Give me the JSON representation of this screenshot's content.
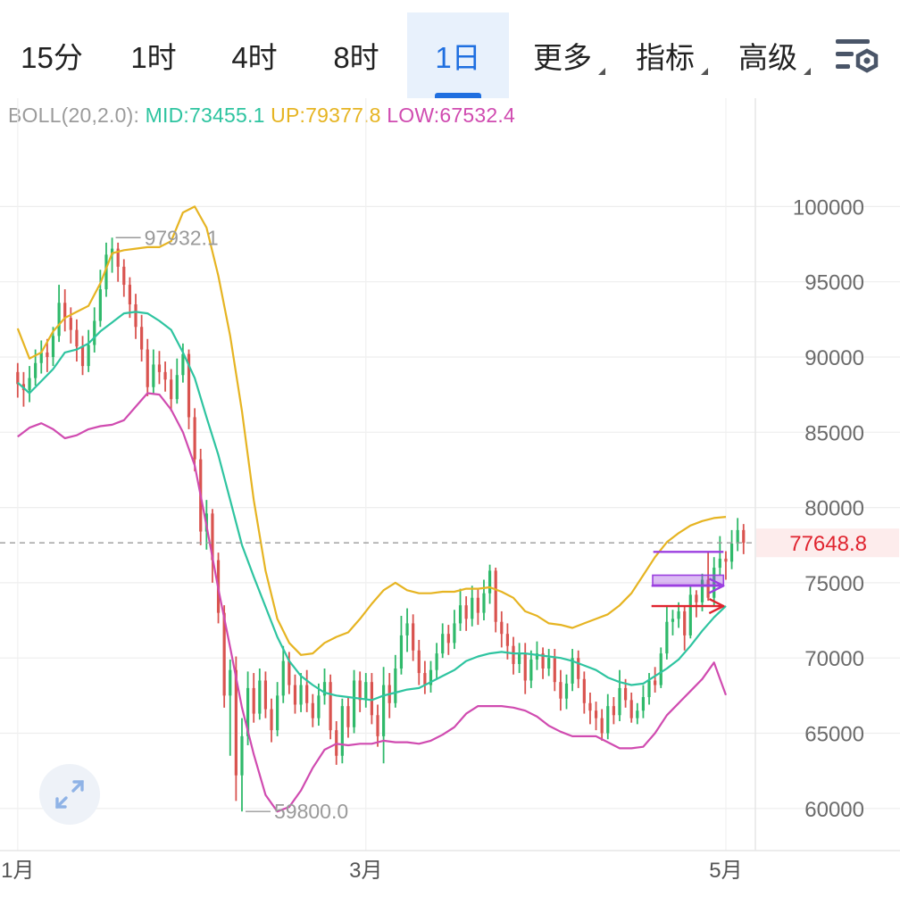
{
  "toolbar": {
    "tabs": [
      {
        "label": "15分",
        "active": false
      },
      {
        "label": "1时",
        "active": false
      },
      {
        "label": "4时",
        "active": false
      },
      {
        "label": "8时",
        "active": false
      },
      {
        "label": "1日",
        "active": true
      },
      {
        "label": "更多",
        "active": false
      },
      {
        "label": "指标",
        "active": false
      },
      {
        "label": "高级",
        "active": false
      }
    ],
    "settings_icon": "chart-settings-icon"
  },
  "indicator": {
    "label": "BOLL(20,2.0):",
    "mid": "MID:73455.1",
    "up": "UP:79377.8",
    "low": "LOW:67532.4"
  },
  "colors": {
    "accent": "#1f6fe0",
    "bull": "#2fb96a",
    "bear": "#d9534f",
    "mid_line": "#2ec4a0",
    "up_line": "#e6b422",
    "low_line": "#d04bb0",
    "drawing_purple": "#9b3fe0",
    "drawing_red": "#e0242f",
    "price_tag_bg": "#fdecec",
    "price_tag_text": "#e0242f"
  },
  "chart_data": {
    "type": "candlestick",
    "y_ticks": [
      "100000",
      "95000",
      "90000",
      "85000",
      "80000",
      "75000",
      "70000",
      "65000",
      "60000"
    ],
    "y_tick_values": [
      100000,
      95000,
      90000,
      85000,
      80000,
      75000,
      70000,
      65000,
      60000
    ],
    "ylim": [
      57200,
      107200
    ],
    "x_ticks": [
      {
        "label": "1月",
        "index": 0
      },
      {
        "label": "3月",
        "index": 59
      },
      {
        "label": "5月",
        "index": 120
      }
    ],
    "x_range": [
      -3,
      125
    ],
    "grid": true,
    "current_price": 77648.8,
    "current_price_label": "77648.8",
    "high_annotation": {
      "label": "97932.1",
      "index": 16,
      "value": 97932.1
    },
    "low_annotation": {
      "label": "59800.0",
      "index": 38,
      "value": 59800.0
    },
    "candles": [
      [
        89000,
        88200,
        89600,
        87300
      ],
      [
        88200,
        87800,
        89000,
        86700
      ],
      [
        87800,
        88600,
        89400,
        87000
      ],
      [
        88600,
        89600,
        90500,
        88100
      ],
      [
        89600,
        90300,
        91100,
        88900
      ],
      [
        90300,
        90000,
        91200,
        89000
      ],
      [
        90000,
        91400,
        92000,
        89400
      ],
      [
        91400,
        93600,
        94800,
        91000
      ],
      [
        93600,
        92600,
        94500,
        91700
      ],
      [
        92600,
        91800,
        93300,
        90900
      ],
      [
        91800,
        90700,
        92500,
        89700
      ],
      [
        90700,
        89400,
        91400,
        88800
      ],
      [
        89400,
        90800,
        91800,
        89000
      ],
      [
        90800,
        92400,
        93300,
        90300
      ],
      [
        92400,
        94500,
        95800,
        92000
      ],
      [
        94500,
        96800,
        97600,
        94000
      ],
      [
        96800,
        97200,
        97932,
        95600
      ],
      [
        97200,
        96000,
        97600,
        95000
      ],
      [
        96000,
        94800,
        96500,
        94000
      ],
      [
        94800,
        93500,
        95300,
        92600
      ],
      [
        93500,
        92000,
        94200,
        91200
      ],
      [
        92000,
        90500,
        92800,
        89700
      ],
      [
        90500,
        88000,
        91200,
        87400
      ],
      [
        88000,
        89500,
        90500,
        87500
      ],
      [
        89500,
        89000,
        90400,
        88200
      ],
      [
        89000,
        88500,
        89700,
        87700
      ],
      [
        88500,
        87200,
        89200,
        86400
      ],
      [
        87200,
        88800,
        89900,
        86900
      ],
      [
        88800,
        90200,
        90900,
        88300
      ],
      [
        90200,
        86000,
        90500,
        85200
      ],
      [
        86000,
        83200,
        86600,
        82400
      ],
      [
        83200,
        78400,
        83900,
        77500
      ],
      [
        78400,
        79600,
        80500,
        77200
      ],
      [
        79600,
        76500,
        79900,
        75000
      ],
      [
        76500,
        73000,
        77000,
        72300
      ],
      [
        73000,
        67500,
        73500,
        66700
      ],
      [
        67500,
        69200,
        69900,
        63500
      ],
      [
        69200,
        62200,
        70100,
        60500
      ],
      [
        62200,
        64800,
        66000,
        59800
      ],
      [
        64800,
        68000,
        69100,
        64200
      ],
      [
        68000,
        66300,
        69000,
        65700
      ],
      [
        66300,
        68500,
        69300,
        65900
      ],
      [
        68500,
        66600,
        69100,
        66000
      ],
      [
        66600,
        65200,
        67300,
        64400
      ],
      [
        65200,
        67500,
        68400,
        64800
      ],
      [
        67500,
        69800,
        70800,
        67000
      ],
      [
        69800,
        68200,
        70400,
        67600
      ],
      [
        68200,
        66900,
        68900,
        66300
      ],
      [
        66900,
        68200,
        69000,
        66400
      ],
      [
        68200,
        67000,
        69200,
        66400
      ],
      [
        67000,
        66000,
        67600,
        65400
      ],
      [
        66000,
        67500,
        68300,
        65500
      ],
      [
        67500,
        68400,
        69300,
        66900
      ],
      [
        68400,
        65200,
        68900,
        64600
      ],
      [
        65200,
        63500,
        65800,
        62900
      ],
      [
        63500,
        66800,
        67300,
        63000
      ],
      [
        66800,
        65400,
        67400,
        64700
      ],
      [
        65400,
        68500,
        69200,
        65000
      ],
      [
        68500,
        67200,
        69100,
        66400
      ],
      [
        67200,
        68400,
        69000,
        66700
      ],
      [
        68400,
        66200,
        69000,
        65600
      ],
      [
        66200,
        64800,
        66900,
        64100
      ],
      [
        64800,
        68200,
        69400,
        63000
      ],
      [
        68200,
        67000,
        69000,
        66000
      ],
      [
        67000,
        69300,
        70200,
        66700
      ],
      [
        69300,
        71500,
        72800,
        68900
      ],
      [
        71500,
        72300,
        73300,
        70400
      ],
      [
        72300,
        70500,
        72900,
        69800
      ],
      [
        70500,
        69000,
        71200,
        68200
      ],
      [
        69000,
        68200,
        69800,
        67600
      ],
      [
        68200,
        69200,
        69800,
        67700
      ],
      [
        69200,
        70300,
        71000,
        68600
      ],
      [
        70300,
        71600,
        72300,
        70000
      ],
      [
        71600,
        71000,
        72200,
        70200
      ],
      [
        71000,
        72300,
        73200,
        70600
      ],
      [
        72300,
        73500,
        74600,
        71800
      ],
      [
        73500,
        72600,
        74100,
        71800
      ],
      [
        72600,
        74000,
        74800,
        72100
      ],
      [
        74000,
        73000,
        74600,
        72200
      ],
      [
        73000,
        74300,
        75200,
        72500
      ],
      [
        74300,
        75800,
        76200,
        73600
      ],
      [
        75800,
        72400,
        76000,
        71700
      ],
      [
        72400,
        71600,
        73100,
        70700
      ],
      [
        71600,
        70800,
        72300,
        69900
      ],
      [
        70800,
        69600,
        71400,
        68900
      ],
      [
        69600,
        70300,
        71000,
        69000
      ],
      [
        70300,
        68500,
        71000,
        67600
      ],
      [
        68500,
        69900,
        70500,
        68000
      ],
      [
        69900,
        70300,
        71100,
        69200
      ],
      [
        70300,
        69300,
        70700,
        68600
      ],
      [
        69300,
        70000,
        70600,
        68800
      ],
      [
        70000,
        68400,
        70600,
        67800
      ],
      [
        68400,
        67300,
        69200,
        66500
      ],
      [
        67300,
        68300,
        68900,
        66600
      ],
      [
        68300,
        70000,
        70600,
        67800
      ],
      [
        70000,
        68600,
        70500,
        68000
      ],
      [
        68600,
        67000,
        69100,
        66300
      ],
      [
        67000,
        66500,
        67700,
        65600
      ],
      [
        66500,
        66000,
        67100,
        65200
      ],
      [
        66000,
        65000,
        66600,
        64500
      ],
      [
        65000,
        66800,
        67600,
        64600
      ],
      [
        66800,
        66200,
        67400,
        65600
      ],
      [
        66200,
        68000,
        69200,
        65800
      ],
      [
        68000,
        67200,
        68600,
        66700
      ],
      [
        67200,
        66000,
        67700,
        65700
      ],
      [
        66000,
        66500,
        67000,
        65600
      ],
      [
        66500,
        67400,
        68200,
        66000
      ],
      [
        67400,
        68500,
        69000,
        66900
      ],
      [
        68500,
        68200,
        69400,
        67700
      ],
      [
        68200,
        70300,
        70700,
        68000
      ],
      [
        70300,
        72400,
        73400,
        69900
      ],
      [
        72400,
        72600,
        73200,
        71500
      ],
      [
        72600,
        73100,
        73700,
        72000
      ],
      [
        73100,
        71500,
        73500,
        70500
      ],
      [
        71500,
        74200,
        74800,
        71300
      ],
      [
        74200,
        73700,
        74500,
        72700
      ],
      [
        73700,
        75200,
        75600,
        73100
      ],
      [
        75200,
        74000,
        77100,
        73800
      ],
      [
        74000,
        76000,
        76700,
        73500
      ],
      [
        76000,
        76600,
        78100,
        75500
      ],
      [
        76600,
        76400,
        77100,
        75200
      ],
      [
        76400,
        77600,
        78500,
        75900
      ],
      [
        77600,
        78500,
        79300,
        77100
      ],
      [
        78500,
        77649,
        78900,
        76900
      ]
    ],
    "mid": [
      [
        0,
        88300
      ],
      [
        2,
        87600
      ],
      [
        4,
        88400
      ],
      [
        6,
        89200
      ],
      [
        8,
        90300
      ],
      [
        10,
        90500
      ],
      [
        12,
        90900
      ],
      [
        14,
        91700
      ],
      [
        16,
        92300
      ],
      [
        18,
        92900
      ],
      [
        20,
        93000
      ],
      [
        22,
        92900
      ],
      [
        24,
        92400
      ],
      [
        26,
        91800
      ],
      [
        28,
        90300
      ],
      [
        30,
        88600
      ],
      [
        32,
        86000
      ],
      [
        34,
        83500
      ],
      [
        36,
        80500
      ],
      [
        38,
        77500
      ],
      [
        40,
        75400
      ],
      [
        42,
        73400
      ],
      [
        44,
        71400
      ],
      [
        46,
        69800
      ],
      [
        48,
        68800
      ],
      [
        50,
        68200
      ],
      [
        52,
        67700
      ],
      [
        54,
        67500
      ],
      [
        56,
        67400
      ],
      [
        58,
        67300
      ],
      [
        60,
        67200
      ],
      [
        62,
        67500
      ],
      [
        64,
        67700
      ],
      [
        66,
        67900
      ],
      [
        68,
        68000
      ],
      [
        70,
        68400
      ],
      [
        72,
        68800
      ],
      [
        74,
        69200
      ],
      [
        76,
        69800
      ],
      [
        78,
        70100
      ],
      [
        80,
        70300
      ],
      [
        82,
        70400
      ],
      [
        84,
        70300
      ],
      [
        86,
        70300
      ],
      [
        88,
        70200
      ],
      [
        90,
        70100
      ],
      [
        92,
        70000
      ],
      [
        94,
        69800
      ],
      [
        96,
        69500
      ],
      [
        98,
        69200
      ],
      [
        100,
        68700
      ],
      [
        102,
        68400
      ],
      [
        104,
        68200
      ],
      [
        106,
        68300
      ],
      [
        108,
        68800
      ],
      [
        110,
        69300
      ],
      [
        112,
        69900
      ],
      [
        114,
        70800
      ],
      [
        116,
        71800
      ],
      [
        118,
        72700
      ],
      [
        120,
        73455
      ]
    ],
    "up": [
      [
        0,
        91900
      ],
      [
        2,
        89900
      ],
      [
        4,
        90300
      ],
      [
        6,
        91700
      ],
      [
        8,
        92600
      ],
      [
        10,
        93000
      ],
      [
        12,
        93400
      ],
      [
        14,
        94900
      ],
      [
        16,
        96900
      ],
      [
        18,
        97100
      ],
      [
        20,
        97200
      ],
      [
        22,
        97300
      ],
      [
        24,
        97300
      ],
      [
        26,
        97700
      ],
      [
        28,
        99600
      ],
      [
        30,
        100000
      ],
      [
        32,
        98600
      ],
      [
        34,
        95400
      ],
      [
        36,
        91400
      ],
      [
        38,
        86400
      ],
      [
        40,
        80500
      ],
      [
        42,
        75800
      ],
      [
        44,
        72600
      ],
      [
        46,
        71000
      ],
      [
        48,
        70200
      ],
      [
        50,
        70300
      ],
      [
        52,
        71000
      ],
      [
        54,
        71400
      ],
      [
        56,
        71700
      ],
      [
        58,
        72600
      ],
      [
        60,
        73600
      ],
      [
        62,
        74500
      ],
      [
        64,
        75000
      ],
      [
        66,
        74500
      ],
      [
        68,
        74300
      ],
      [
        70,
        74300
      ],
      [
        72,
        74400
      ],
      [
        74,
        74400
      ],
      [
        76,
        74600
      ],
      [
        78,
        74600
      ],
      [
        80,
        74700
      ],
      [
        82,
        74400
      ],
      [
        84,
        74000
      ],
      [
        86,
        73100
      ],
      [
        88,
        72800
      ],
      [
        90,
        72300
      ],
      [
        92,
        72200
      ],
      [
        94,
        72000
      ],
      [
        96,
        72300
      ],
      [
        98,
        72600
      ],
      [
        100,
        72900
      ],
      [
        102,
        73500
      ],
      [
        104,
        74300
      ],
      [
        106,
        75500
      ],
      [
        108,
        76700
      ],
      [
        110,
        77700
      ],
      [
        112,
        78300
      ],
      [
        114,
        78800
      ],
      [
        116,
        79100
      ],
      [
        118,
        79300
      ],
      [
        120,
        79378
      ]
    ],
    "low": [
      [
        0,
        84700
      ],
      [
        2,
        85300
      ],
      [
        4,
        85600
      ],
      [
        6,
        85200
      ],
      [
        8,
        84600
      ],
      [
        10,
        84800
      ],
      [
        12,
        85200
      ],
      [
        14,
        85400
      ],
      [
        16,
        85500
      ],
      [
        18,
        85800
      ],
      [
        20,
        86700
      ],
      [
        22,
        87600
      ],
      [
        24,
        87500
      ],
      [
        26,
        86500
      ],
      [
        28,
        85000
      ],
      [
        30,
        82800
      ],
      [
        32,
        78800
      ],
      [
        34,
        74600
      ],
      [
        36,
        70700
      ],
      [
        38,
        66700
      ],
      [
        40,
        63600
      ],
      [
        42,
        60900
      ],
      [
        44,
        59800
      ],
      [
        46,
        60100
      ],
      [
        48,
        61200
      ],
      [
        50,
        62700
      ],
      [
        52,
        63900
      ],
      [
        54,
        64300
      ],
      [
        56,
        64200
      ],
      [
        58,
        64300
      ],
      [
        60,
        64300
      ],
      [
        62,
        64500
      ],
      [
        64,
        64400
      ],
      [
        66,
        64400
      ],
      [
        68,
        64300
      ],
      [
        70,
        64500
      ],
      [
        72,
        64900
      ],
      [
        74,
        65400
      ],
      [
        76,
        66300
      ],
      [
        78,
        66800
      ],
      [
        80,
        66800
      ],
      [
        82,
        66800
      ],
      [
        84,
        66700
      ],
      [
        86,
        66500
      ],
      [
        88,
        66100
      ],
      [
        90,
        65500
      ],
      [
        92,
        65100
      ],
      [
        94,
        64800
      ],
      [
        96,
        64800
      ],
      [
        98,
        64800
      ],
      [
        100,
        64400
      ],
      [
        102,
        64000
      ],
      [
        104,
        64000
      ],
      [
        106,
        64100
      ],
      [
        108,
        65000
      ],
      [
        110,
        66200
      ],
      [
        112,
        67000
      ],
      [
        114,
        67800
      ],
      [
        116,
        68600
      ],
      [
        118,
        69700
      ],
      [
        120,
        67532
      ]
    ],
    "drawings": [
      {
        "kind": "hline",
        "color": "purple",
        "from_index": 107.7,
        "to_index": 119.6,
        "value": 77050
      },
      {
        "kind": "box",
        "color": "purple",
        "from_index": 107.6,
        "to_index": 119.6,
        "top": 75500,
        "bottom": 74850
      },
      {
        "kind": "arrow",
        "color": "purple",
        "from_index": 107.4,
        "to_index": 119.6,
        "value": 74800
      },
      {
        "kind": "arrow",
        "color": "red",
        "from_index": 107.4,
        "to_index": 119.6,
        "value": 73450
      }
    ]
  }
}
